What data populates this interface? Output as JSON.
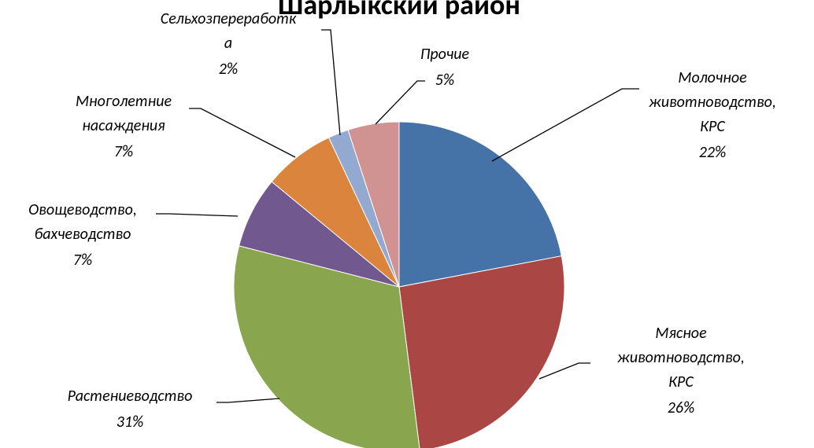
{
  "chart_data": {
    "type": "pie",
    "title": "Шарлыкский район",
    "categories": [
      "Молочное животноводство, КРС",
      "Мясное животноводство, КРС",
      "Растениеводство",
      "Овощеводство, бахчеводство",
      "Многолетние насаждения",
      "Сельхозпереработка",
      "Прочие"
    ],
    "values": [
      22,
      26,
      31,
      7,
      7,
      2,
      5
    ],
    "value_labels": [
      "22%",
      "26%",
      "31%",
      "7%",
      "7%",
      "2%",
      "5%"
    ],
    "colors": [
      "#4572a7",
      "#aa4643",
      "#89a54e",
      "#71588f",
      "#db843d",
      "#93a9cf",
      "#d19392"
    ]
  }
}
